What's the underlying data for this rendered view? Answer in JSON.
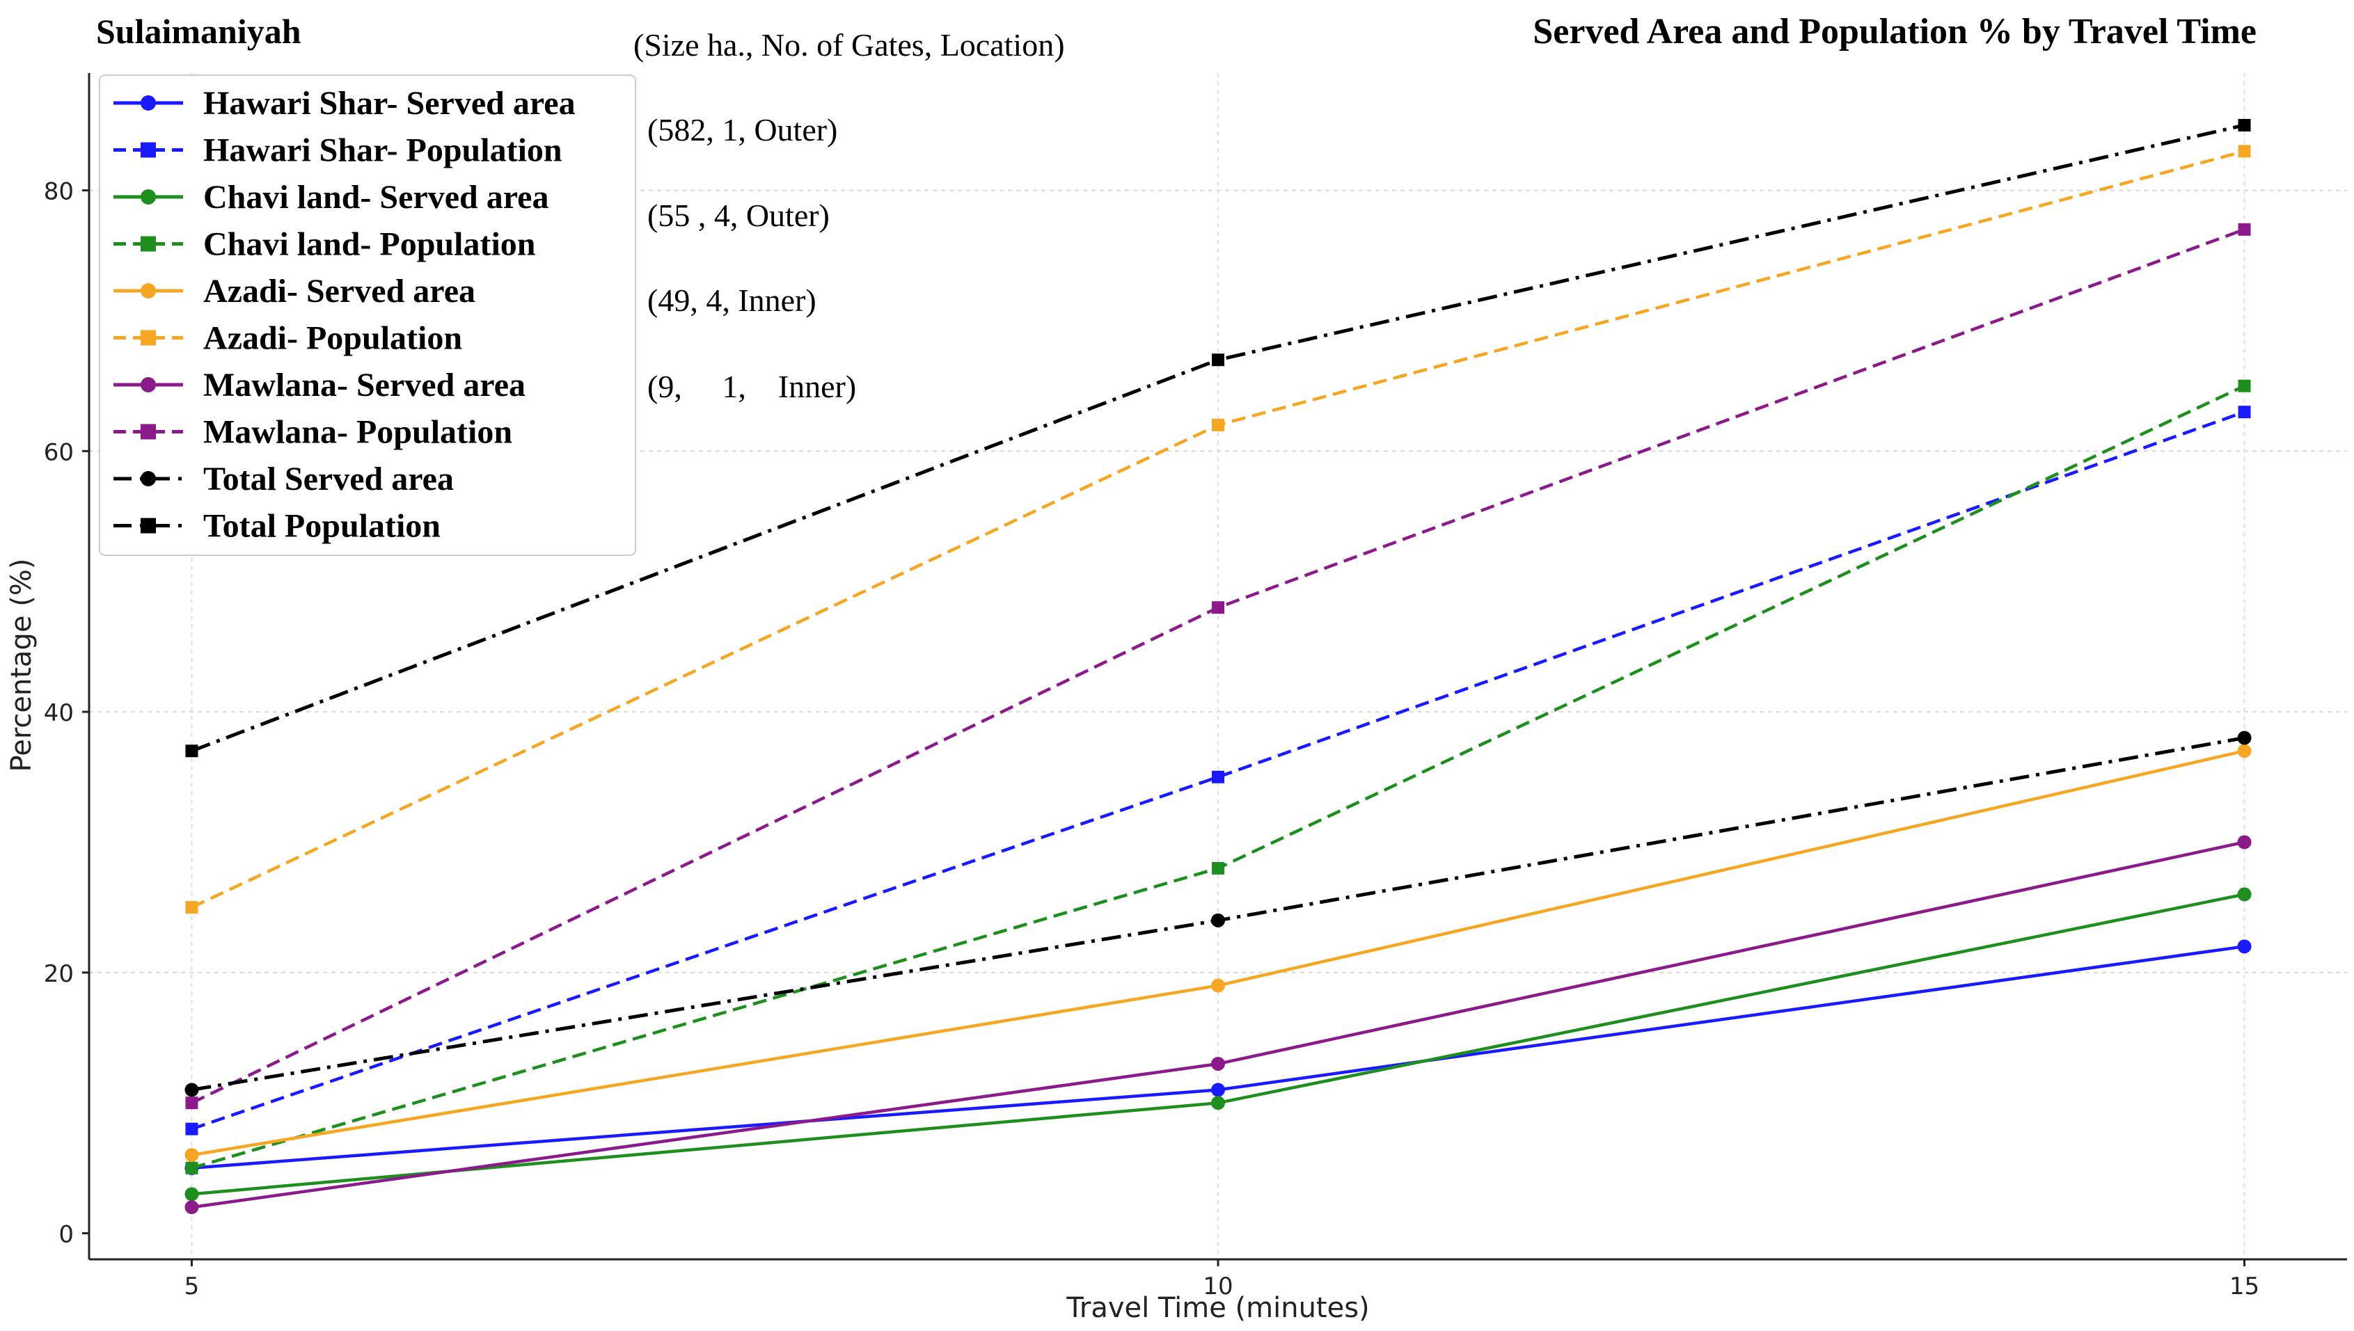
{
  "chart_data": {
    "type": "line",
    "city": "Sulaimaniyah",
    "title": "Served Area and Population % by Travel Time",
    "subtitle": "(Size ha., No. of Gates, Location)",
    "xlabel": "Travel Time (minutes)",
    "ylabel": "Percentage (%)",
    "x": [
      5,
      10,
      15
    ],
    "xticks": [
      "5",
      "10",
      "15"
    ],
    "yticks": [
      "0",
      "20",
      "40",
      "60",
      "80"
    ],
    "xlim": [
      4.5,
      15.5
    ],
    "ylim": [
      -2,
      89
    ],
    "grid": true,
    "legend_position": "top-left",
    "annotations": [
      "(582, 1, Outer)",
      "(55 , 4,  Outer)",
      "(49,  4,   Inner)",
      "(9,     1,    Inner)"
    ],
    "series": [
      {
        "name": "Hawari Shar- Served area",
        "values": [
          5,
          11,
          22
        ],
        "color": "#1a1aff",
        "style": "solid",
        "marker": "circle"
      },
      {
        "name": "Hawari Shar- Population",
        "values": [
          8,
          35,
          63
        ],
        "color": "#1a1aff",
        "style": "dashed",
        "marker": "square"
      },
      {
        "name": "Chavi land- Served area",
        "values": [
          3,
          10,
          26
        ],
        "color": "#1e8f1e",
        "style": "solid",
        "marker": "circle"
      },
      {
        "name": "Chavi land- Population",
        "values": [
          5,
          28,
          65
        ],
        "color": "#1e8f1e",
        "style": "dashed",
        "marker": "square"
      },
      {
        "name": "Azadi- Served area",
        "values": [
          6,
          19,
          37
        ],
        "color": "#f5a623",
        "style": "solid",
        "marker": "circle"
      },
      {
        "name": "Azadi- Population",
        "values": [
          25,
          62,
          83
        ],
        "color": "#f5a623",
        "style": "dashed",
        "marker": "square"
      },
      {
        "name": "Mawlana- Served area",
        "values": [
          2,
          13,
          30
        ],
        "color": "#8b1a8b",
        "style": "solid",
        "marker": "circle"
      },
      {
        "name": "Mawlana- Population",
        "values": [
          10,
          48,
          77
        ],
        "color": "#8b1a8b",
        "style": "dashed",
        "marker": "square"
      },
      {
        "name": "Total Served area",
        "values": [
          11,
          24,
          38
        ],
        "color": "#000000",
        "style": "dashdot",
        "marker": "circle"
      },
      {
        "name": "Total Population",
        "values": [
          37,
          67,
          85
        ],
        "color": "#000000",
        "style": "dashdot",
        "marker": "square"
      }
    ]
  }
}
